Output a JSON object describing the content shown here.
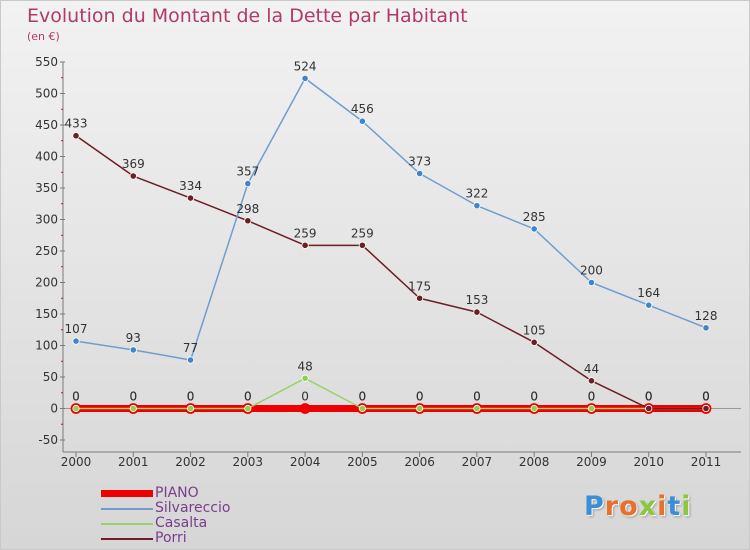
{
  "header": {
    "title": "Evolution du Montant de la Dette par Habitant",
    "unit": "(en €)"
  },
  "logo": {
    "text": "Proxiti"
  },
  "chart_data": {
    "type": "line",
    "title": "Evolution du Montant de la Dette par Habitant",
    "subtitle": "(en €)",
    "xlabel": "",
    "ylabel": "",
    "x": [
      "2000",
      "2001",
      "2002",
      "2003",
      "2004",
      "2005",
      "2006",
      "2007",
      "2008",
      "2009",
      "2010",
      "2011"
    ],
    "ylim": [
      -50,
      550
    ],
    "yticks": [
      -50,
      0,
      50,
      100,
      150,
      200,
      250,
      300,
      350,
      400,
      450,
      500,
      550
    ],
    "grid": false,
    "legend_position": "bottom-left",
    "series": [
      {
        "name": "PIANO",
        "color": "#ee0000",
        "values": [
          0,
          0,
          0,
          0,
          0,
          0,
          0,
          0,
          0,
          0,
          0,
          0
        ]
      },
      {
        "name": "Silvareccio",
        "color": "#6f9ecd",
        "values": [
          107,
          93,
          77,
          357,
          524,
          456,
          373,
          322,
          285,
          200,
          164,
          128
        ]
      },
      {
        "name": "Casalta",
        "color": "#9ad16a",
        "values": [
          0,
          0,
          0,
          0,
          48,
          0,
          0,
          0,
          0,
          0,
          0,
          0
        ]
      },
      {
        "name": "Porri",
        "color": "#6b1e24",
        "values": [
          433,
          369,
          334,
          298,
          259,
          259,
          175,
          153,
          105,
          44,
          0,
          0
        ]
      }
    ]
  }
}
